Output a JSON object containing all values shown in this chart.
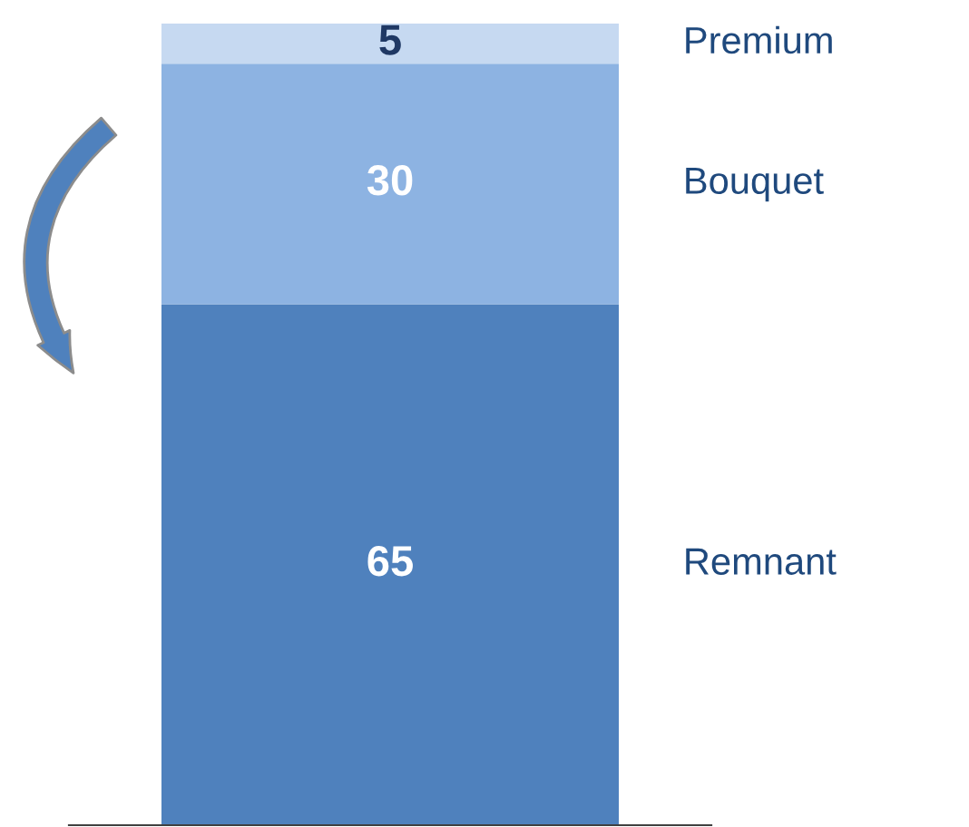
{
  "chart_data": {
    "type": "bar",
    "stacked": true,
    "categories": [
      null
    ],
    "ylim": [
      0,
      100
    ],
    "data_labels": true,
    "legend": false,
    "grid": false,
    "series": [
      {
        "name": "Remnant",
        "color": "#4f81bd",
        "values": [
          65
        ]
      },
      {
        "name": "Bouquet",
        "color": "#8db3e2",
        "values": [
          30
        ]
      },
      {
        "name": "Premium",
        "color": "#c6d9f1",
        "values": [
          5
        ]
      }
    ]
  }
}
